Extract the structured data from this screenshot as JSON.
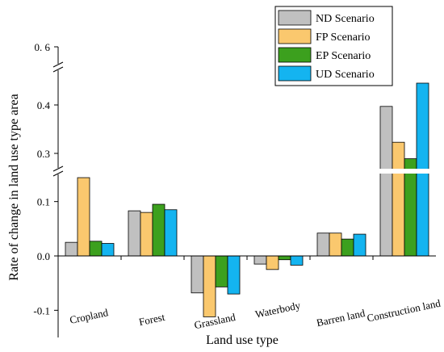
{
  "chart_data": {
    "type": "bar",
    "title": "",
    "xlabel": "Land use type",
    "ylabel": "Rate of change in land use type area",
    "categories": [
      "Cropland",
      "Forest",
      "Grassland",
      "Waterbody",
      "Barren land",
      "Construction land"
    ],
    "series": [
      {
        "name": "ND Scenario",
        "color": "#c0c0c0",
        "values": [
          0.025,
          0.083,
          -0.068,
          -0.015,
          0.042,
          0.397
        ]
      },
      {
        "name": "FP Scenario",
        "color": "#fac86e",
        "values": [
          0.144,
          0.08,
          -0.112,
          -0.025,
          0.042,
          0.323
        ]
      },
      {
        "name": "EP Scenario",
        "color": "#3ca01e",
        "values": [
          0.027,
          0.095,
          -0.057,
          -0.007,
          0.031,
          0.289
        ]
      },
      {
        "name": "UD Scenario",
        "color": "#14b4f0",
        "values": [
          0.023,
          0.085,
          -0.07,
          -0.017,
          0.04,
          0.445
        ]
      }
    ],
    "y_axis": {
      "broken": true,
      "segments": [
        {
          "range": [
            -0.15,
            0.15
          ],
          "ticks": [
            -0.1,
            0.0,
            0.1
          ],
          "tick_labels": [
            "-0.1",
            "0.0",
            "0.1"
          ]
        },
        {
          "range": [
            0.27,
            0.45
          ],
          "ticks": [
            0.3,
            0.4
          ],
          "tick_labels": [
            "0.3",
            "0.4"
          ]
        },
        {
          "range": [
            0.58,
            0.6
          ],
          "ticks": [
            0.6
          ],
          "tick_labels": [
            "0. 6"
          ]
        }
      ]
    },
    "legend_position": "top-right",
    "grid": false
  }
}
